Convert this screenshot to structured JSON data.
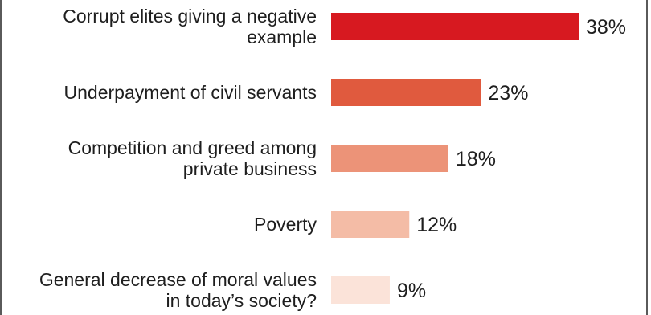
{
  "chart_data": {
    "type": "bar",
    "orientation": "horizontal",
    "categories": [
      [
        "Corrupt elites giving a negative",
        "example"
      ],
      [
        "Underpayment of civil servants"
      ],
      [
        "Competition and greed among",
        "private business"
      ],
      [
        "Poverty"
      ],
      [
        "General decrease of moral values",
        "in today’s society?"
      ]
    ],
    "values": [
      38,
      23,
      18,
      12,
      9
    ],
    "value_labels": [
      "38%",
      "23%",
      "18%",
      "12%",
      "9%"
    ],
    "colors": [
      "#d71920",
      "#e05a3e",
      "#ec9378",
      "#f4bca6",
      "#fbe3d9"
    ],
    "xlim": [
      0,
      38
    ],
    "grid": false,
    "legend": "none"
  }
}
